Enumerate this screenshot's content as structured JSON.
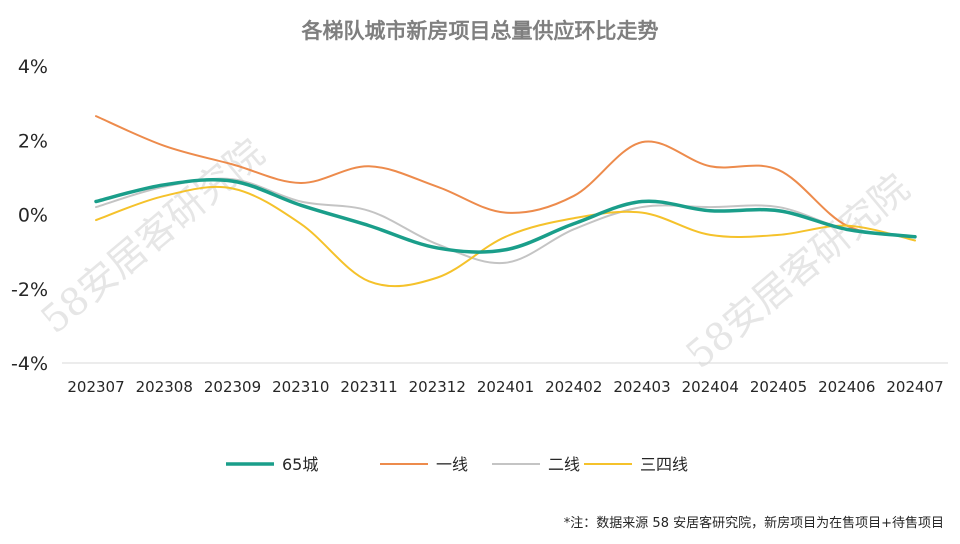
{
  "chart_data": {
    "type": "line",
    "title": "各梯队城市新房项目总量供应环比走势",
    "categories": [
      "202307",
      "202308",
      "202309",
      "202310",
      "202311",
      "202312",
      "202401",
      "202402",
      "202403",
      "202404",
      "202405",
      "202406",
      "202407"
    ],
    "ylim": [
      -4,
      4
    ],
    "yticks": [
      4,
      2,
      0,
      -2,
      -4
    ],
    "ytick_labels": [
      "4%",
      "2%",
      "0%",
      "-2%",
      "-4%"
    ],
    "series": [
      {
        "name": "65城",
        "color": "#1a9e8a",
        "width": 3.5,
        "values": [
          0.35,
          0.8,
          0.9,
          0.25,
          -0.3,
          -0.9,
          -0.95,
          -0.25,
          0.35,
          0.1,
          0.1,
          -0.4,
          -0.6
        ]
      },
      {
        "name": "一线",
        "color": "#ed8b4c",
        "width": 2,
        "values": [
          2.65,
          1.85,
          1.35,
          0.85,
          1.3,
          0.75,
          0.05,
          0.5,
          1.95,
          1.3,
          1.2,
          -0.3,
          -0.6
        ]
      },
      {
        "name": "二线",
        "color": "#c4c4c4",
        "width": 2,
        "values": [
          0.2,
          0.75,
          0.95,
          0.35,
          0.1,
          -0.8,
          -1.3,
          -0.4,
          0.2,
          0.2,
          0.2,
          -0.4,
          -0.6
        ]
      },
      {
        "name": "三四线",
        "color": "#f5c22b",
        "width": 2,
        "values": [
          -0.15,
          0.5,
          0.7,
          -0.25,
          -1.8,
          -1.7,
          -0.6,
          -0.1,
          0.05,
          -0.55,
          -0.55,
          -0.3,
          -0.7
        ]
      }
    ],
    "legend": [
      "65城",
      "一线",
      "二线",
      "三四线"
    ],
    "legend_position": "bottom",
    "grid": false
  },
  "footnote": "*注：数据来源 58 安居客研究院，新房项目为在售项目+待售项目",
  "watermark": "58安居客研究院"
}
